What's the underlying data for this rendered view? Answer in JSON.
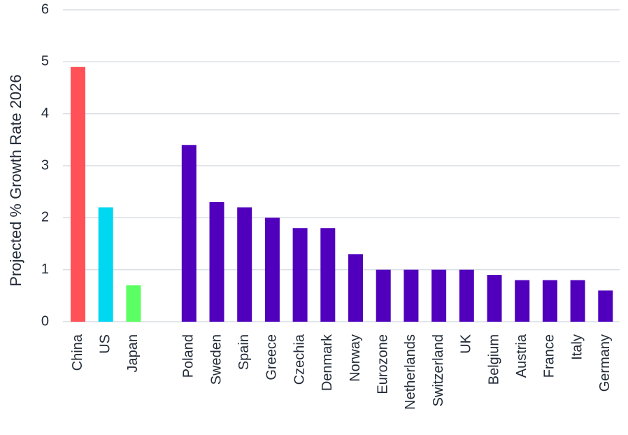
{
  "chart_data": {
    "type": "bar",
    "title": "",
    "xlabel": "",
    "ylabel": "Projected % Growth Rate 2026",
    "ylim": [
      0,
      6
    ],
    "yticks": [
      0,
      1,
      2,
      3,
      4,
      5,
      6
    ],
    "grid": true,
    "legend": "none",
    "groups": [
      {
        "categories": [
          "China",
          "US",
          "Japan"
        ],
        "values": [
          4.9,
          2.2,
          0.7
        ],
        "colors": [
          "#ff5157",
          "#00d7f0",
          "#5cff63"
        ]
      },
      {
        "categories": [
          "Poland",
          "Sweden",
          "Spain",
          "Greece",
          "Czechia",
          "Denmark",
          "Norway",
          "Eurozone",
          "Netherlands",
          "Switzerland",
          "UK",
          "Belgium",
          "Austria",
          "France",
          "Italy",
          "Germany"
        ],
        "values": [
          3.4,
          2.3,
          2.2,
          2.0,
          1.8,
          1.8,
          1.3,
          1.0,
          1.0,
          1.0,
          1.0,
          0.9,
          0.8,
          0.8,
          0.8,
          0.6
        ],
        "colors": [
          "#5000bd"
        ]
      }
    ]
  }
}
